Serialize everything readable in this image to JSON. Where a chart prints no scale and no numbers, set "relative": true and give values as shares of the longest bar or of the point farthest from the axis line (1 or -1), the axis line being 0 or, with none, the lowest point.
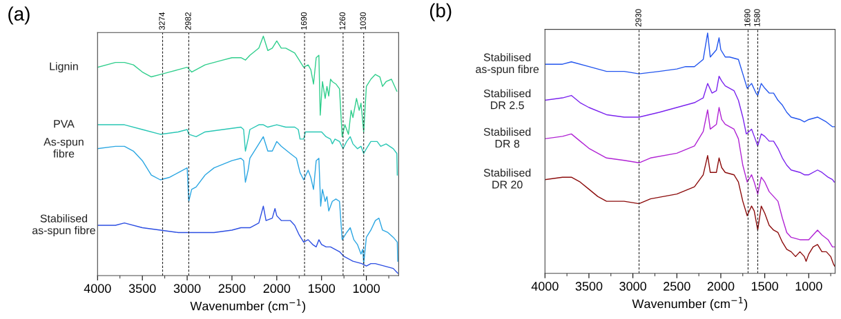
{
  "chart_data": [
    {
      "type": "line",
      "title": "(a)",
      "xlabel": "Wavenumber (cm$^{−1}$)",
      "relative": true,
      "xlim": [
        4000,
        640
      ],
      "xticks": [
        4000,
        {
          "value": 3750,
          "label": null
        },
        3500,
        {
          "value": 3250,
          "label": null
        },
        3000,
        {
          "value": 2750,
          "label": null
        },
        2500,
        {
          "value": 2250,
          "label": null
        },
        2000,
        {
          "value": 1750,
          "label": null
        },
        1500,
        {
          "value": 1250,
          "label": null
        },
        1000,
        {
          "value": 750,
          "label": null
        }
      ],
      "ref_lines": [
        {
          "axis": "x",
          "value": 3274,
          "label": "3274",
          "line_style": "dashed"
        },
        {
          "axis": "x",
          "value": 2982,
          "label": "2982",
          "line_style": "dashed"
        },
        {
          "axis": "x",
          "value": 1690,
          "label": "1690",
          "line_style": "dashed"
        },
        {
          "axis": "x",
          "value": 1260,
          "label": "1260",
          "line_style": "dashed"
        },
        {
          "axis": "x",
          "value": 1030,
          "label": "1030",
          "line_style": "dashed"
        }
      ],
      "series": [
        {
          "name": "Lignin",
          "color": "#2fce8c",
          "x": [
            4000,
            3800,
            3700,
            3600,
            3500,
            3400,
            3300,
            3200,
            3100,
            3000,
            2950,
            2900,
            2800,
            2700,
            2600,
            2500,
            2400,
            2350,
            2300,
            2200,
            2150,
            2100,
            2050,
            2000,
            1950,
            1900,
            1800,
            1750,
            1700,
            1650,
            1620,
            1590,
            1560,
            1530,
            1515,
            1490,
            1460,
            1440,
            1420,
            1400,
            1380,
            1340,
            1300,
            1270,
            1240,
            1200,
            1170,
            1150,
            1110,
            1080,
            1060,
            1030,
            1000,
            950,
            900,
            850,
            820,
            780,
            720,
            660
          ],
          "values": [
            0.87,
            0.89,
            0.89,
            0.88,
            0.85,
            0.83,
            0.84,
            0.85,
            0.86,
            0.87,
            0.85,
            0.86,
            0.88,
            0.89,
            0.9,
            0.91,
            0.91,
            0.9,
            0.92,
            0.95,
            1.0,
            0.94,
            0.95,
            0.98,
            0.95,
            0.95,
            0.93,
            0.9,
            0.87,
            0.88,
            0.86,
            0.8,
            0.91,
            0.92,
            0.67,
            0.81,
            0.74,
            0.79,
            0.75,
            0.82,
            0.81,
            0.8,
            0.78,
            0.58,
            0.63,
            0.59,
            0.69,
            0.66,
            0.74,
            0.69,
            0.72,
            0.6,
            0.79,
            0.82,
            0.84,
            0.83,
            0.79,
            0.81,
            0.82,
            0.77
          ]
        },
        {
          "name": "PVA",
          "color": "#27c6b4",
          "x": [
            4000,
            3700,
            3500,
            3300,
            3100,
            3000,
            2982,
            2900,
            2800,
            2600,
            2400,
            2370,
            2350,
            2320,
            2300,
            2200,
            2150,
            2100,
            2000,
            1900,
            1800,
            1760,
            1740,
            1700,
            1680,
            1600,
            1500,
            1450,
            1400,
            1380,
            1350,
            1300,
            1260,
            1220,
            1180,
            1150,
            1100,
            1060,
            1030,
            1000,
            950,
            880,
            840,
            780,
            700,
            660,
            655
          ],
          "values": [
            0.63,
            0.63,
            0.61,
            0.59,
            0.6,
            0.61,
            0.59,
            0.58,
            0.6,
            0.61,
            0.62,
            0.61,
            0.52,
            0.57,
            0.61,
            0.63,
            0.63,
            0.62,
            0.63,
            0.62,
            0.62,
            0.61,
            0.57,
            0.57,
            0.6,
            0.6,
            0.6,
            0.58,
            0.57,
            0.55,
            0.57,
            0.56,
            0.53,
            0.56,
            0.58,
            0.55,
            0.53,
            0.54,
            0.51,
            0.53,
            0.56,
            0.56,
            0.54,
            0.55,
            0.53,
            0.51,
            0.42
          ]
        },
        {
          "name": "As-spun\nfibre",
          "color": "#2aa6e2",
          "x": [
            4000,
            3800,
            3700,
            3600,
            3500,
            3400,
            3300,
            3200,
            3100,
            3050,
            3000,
            2982,
            2950,
            2900,
            2800,
            2700,
            2500,
            2400,
            2370,
            2350,
            2320,
            2300,
            2200,
            2150,
            2100,
            2050,
            2000,
            1950,
            1850,
            1780,
            1740,
            1700,
            1650,
            1620,
            1590,
            1560,
            1530,
            1510,
            1490,
            1460,
            1440,
            1420,
            1380,
            1340,
            1300,
            1270,
            1220,
            1180,
            1140,
            1100,
            1060,
            1040,
            1030,
            1000,
            950,
            900,
            860,
            820,
            760,
            700,
            655,
            650
          ],
          "values": [
            0.53,
            0.54,
            0.54,
            0.52,
            0.48,
            0.42,
            0.4,
            0.41,
            0.43,
            0.44,
            0.45,
            0.31,
            0.36,
            0.37,
            0.42,
            0.45,
            0.48,
            0.49,
            0.48,
            0.39,
            0.44,
            0.49,
            0.55,
            0.58,
            0.52,
            0.52,
            0.56,
            0.54,
            0.51,
            0.49,
            0.43,
            0.4,
            0.44,
            0.41,
            0.36,
            0.48,
            0.49,
            0.29,
            0.36,
            0.31,
            0.33,
            0.27,
            0.31,
            0.32,
            0.31,
            0.15,
            0.18,
            0.2,
            0.15,
            0.13,
            0.09,
            0.11,
            0.05,
            0.16,
            0.19,
            0.23,
            0.24,
            0.19,
            0.18,
            0.16,
            0.14,
            0.06
          ]
        },
        {
          "name": "Stabilised\nas-spun fibre",
          "color": "#2b4de2",
          "x": [
            4000,
            3800,
            3700,
            3500,
            3300,
            3100,
            2982,
            2900,
            2700,
            2500,
            2400,
            2300,
            2200,
            2150,
            2120,
            2050,
            2020,
            2000,
            1950,
            1850,
            1800,
            1750,
            1700,
            1650,
            1600,
            1560,
            1530,
            1500,
            1450,
            1400,
            1350,
            1300,
            1250,
            1150,
            1050,
            1000,
            950,
            900,
            800,
            700,
            650
          ],
          "values": [
            0.21,
            0.21,
            0.22,
            0.2,
            0.19,
            0.18,
            0.18,
            0.18,
            0.18,
            0.19,
            0.2,
            0.2,
            0.22,
            0.29,
            0.23,
            0.24,
            0.28,
            0.25,
            0.23,
            0.23,
            0.21,
            0.17,
            0.14,
            0.15,
            0.13,
            0.12,
            0.15,
            0.13,
            0.12,
            0.12,
            0.11,
            0.1,
            0.08,
            0.06,
            0.05,
            0.04,
            0.05,
            0.05,
            0.04,
            0.03,
            0.01
          ]
        }
      ]
    },
    {
      "type": "line",
      "title": "(b)",
      "xlabel": "Wavenumber (cm$^{−1}$)",
      "relative": true,
      "xlim": [
        4000,
        700
      ],
      "xticks": [
        4000,
        {
          "value": 3750,
          "label": null
        },
        3500,
        {
          "value": 3250,
          "label": null
        },
        3000,
        {
          "value": 2750,
          "label": null
        },
        2500,
        {
          "value": 2250,
          "label": null
        },
        2000,
        {
          "value": 1750,
          "label": null
        },
        1500,
        {
          "value": 1250,
          "label": null
        },
        1000,
        {
          "value": 750,
          "label": null
        }
      ],
      "ref_lines": [
        {
          "axis": "x",
          "value": 2930,
          "label": "2930",
          "line_style": "dashed"
        },
        {
          "axis": "x",
          "value": 1690,
          "label": "1690",
          "line_style": "dashed"
        },
        {
          "axis": "x",
          "value": 1580,
          "label": "1580",
          "line_style": "dashed"
        }
      ],
      "series": [
        {
          "name": "Stabilised\nas-spun fibre",
          "color": "#2255ee",
          "x": [
            4000,
            3800,
            3700,
            3500,
            3300,
            3100,
            2930,
            2700,
            2500,
            2400,
            2300,
            2200,
            2150,
            2120,
            2050,
            2020,
            2000,
            1950,
            1900,
            1800,
            1750,
            1700,
            1650,
            1600,
            1580,
            1540,
            1500,
            1450,
            1400,
            1350,
            1300,
            1250,
            1200,
            1100,
            1050,
            1000,
            900,
            850,
            800,
            730,
            710
          ],
          "values": [
            0.87,
            0.87,
            0.88,
            0.86,
            0.84,
            0.84,
            0.83,
            0.84,
            0.85,
            0.86,
            0.86,
            0.89,
            1.0,
            0.9,
            0.93,
            0.98,
            0.93,
            0.9,
            0.9,
            0.89,
            0.83,
            0.77,
            0.79,
            0.75,
            0.74,
            0.79,
            0.77,
            0.75,
            0.75,
            0.72,
            0.7,
            0.67,
            0.65,
            0.64,
            0.63,
            0.64,
            0.65,
            0.64,
            0.63,
            0.61,
            0.61
          ]
        },
        {
          "name": "Stabilised\nDR 2.5",
          "color": "#7a22ee",
          "x": [
            4000,
            3800,
            3700,
            3600,
            3500,
            3300,
            3100,
            2930,
            2700,
            2500,
            2300,
            2200,
            2150,
            2100,
            2050,
            2020,
            1990,
            1950,
            1850,
            1800,
            1750,
            1710,
            1650,
            1620,
            1580,
            1540,
            1500,
            1450,
            1400,
            1350,
            1300,
            1250,
            1200,
            1100,
            1050,
            1000,
            900,
            850,
            780,
            730,
            710
          ],
          "values": [
            0.72,
            0.73,
            0.74,
            0.71,
            0.69,
            0.66,
            0.65,
            0.65,
            0.67,
            0.69,
            0.71,
            0.73,
            0.79,
            0.75,
            0.76,
            0.82,
            0.8,
            0.78,
            0.76,
            0.72,
            0.65,
            0.58,
            0.6,
            0.57,
            0.53,
            0.58,
            0.57,
            0.55,
            0.55,
            0.52,
            0.48,
            0.45,
            0.43,
            0.42,
            0.41,
            0.41,
            0.43,
            0.42,
            0.4,
            0.39,
            0.38
          ]
        },
        {
          "name": "Stabilised\nDR 8",
          "color": "#b022d4",
          "x": [
            4000,
            3800,
            3700,
            3600,
            3500,
            3300,
            3100,
            2930,
            2800,
            2500,
            2300,
            2200,
            2150,
            2120,
            2050,
            2020,
            1990,
            1950,
            1850,
            1800,
            1750,
            1700,
            1650,
            1620,
            1580,
            1540,
            1500,
            1450,
            1400,
            1350,
            1300,
            1250,
            1200,
            1100,
            1050,
            1000,
            950,
            900,
            850,
            780,
            730,
            710
          ],
          "values": [
            0.56,
            0.57,
            0.58,
            0.55,
            0.52,
            0.48,
            0.47,
            0.46,
            0.48,
            0.5,
            0.53,
            0.59,
            0.68,
            0.6,
            0.62,
            0.69,
            0.64,
            0.62,
            0.6,
            0.56,
            0.45,
            0.38,
            0.41,
            0.38,
            0.33,
            0.4,
            0.38,
            0.34,
            0.32,
            0.3,
            0.23,
            0.17,
            0.15,
            0.14,
            0.14,
            0.14,
            0.16,
            0.18,
            0.16,
            0.14,
            0.11,
            0.11
          ]
        },
        {
          "name": "Stabilised\nDR 20",
          "color": "#8b0a0a",
          "x": [
            4000,
            3800,
            3700,
            3600,
            3500,
            3400,
            3300,
            3100,
            2930,
            2800,
            2500,
            2300,
            2200,
            2150,
            2120,
            2050,
            2020,
            1990,
            1950,
            1850,
            1800,
            1750,
            1700,
            1650,
            1620,
            1580,
            1540,
            1500,
            1450,
            1400,
            1350,
            1300,
            1250,
            1200,
            1150,
            1100,
            1050,
            1030,
            1000,
            950,
            900,
            850,
            800,
            750,
            720,
            705
          ],
          "values": [
            0.39,
            0.4,
            0.4,
            0.38,
            0.35,
            0.32,
            0.3,
            0.3,
            0.29,
            0.31,
            0.33,
            0.36,
            0.41,
            0.49,
            0.42,
            0.42,
            0.48,
            0.44,
            0.42,
            0.41,
            0.38,
            0.3,
            0.24,
            0.28,
            0.26,
            0.18,
            0.28,
            0.25,
            0.2,
            0.18,
            0.17,
            0.13,
            0.1,
            0.09,
            0.07,
            0.09,
            0.07,
            0.05,
            0.08,
            0.11,
            0.12,
            0.09,
            0.09,
            0.07,
            0.04,
            0.03
          ]
        }
      ]
    }
  ]
}
